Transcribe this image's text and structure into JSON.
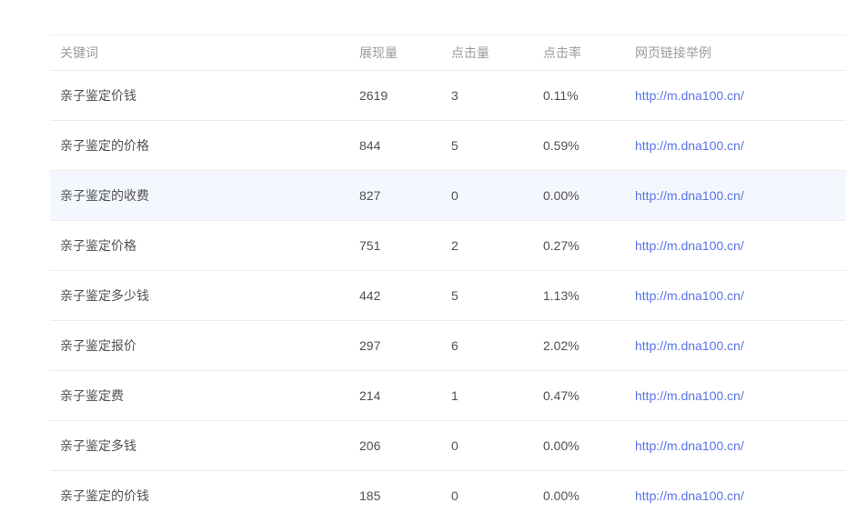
{
  "table": {
    "columns": [
      {
        "key": "keyword",
        "label": "关键词"
      },
      {
        "key": "impressions",
        "label": "展现量"
      },
      {
        "key": "clicks",
        "label": "点击量"
      },
      {
        "key": "ctr",
        "label": "点击率"
      },
      {
        "key": "link",
        "label": "网页链接举例"
      }
    ],
    "rows": [
      {
        "keyword": "亲子鉴定价钱",
        "impressions": "2619",
        "clicks": "3",
        "ctr": "0.11%",
        "link": "http://m.dna100.cn/",
        "highlighted": false
      },
      {
        "keyword": "亲子鉴定的价格",
        "impressions": "844",
        "clicks": "5",
        "ctr": "0.59%",
        "link": "http://m.dna100.cn/",
        "highlighted": false
      },
      {
        "keyword": "亲子鉴定的收费",
        "impressions": "827",
        "clicks": "0",
        "ctr": "0.00%",
        "link": "http://m.dna100.cn/",
        "highlighted": true
      },
      {
        "keyword": "亲子鉴定价格",
        "impressions": "751",
        "clicks": "2",
        "ctr": "0.27%",
        "link": "http://m.dna100.cn/",
        "highlighted": false
      },
      {
        "keyword": "亲子鉴定多少钱",
        "impressions": "442",
        "clicks": "5",
        "ctr": "1.13%",
        "link": "http://m.dna100.cn/",
        "highlighted": false
      },
      {
        "keyword": "亲子鉴定报价",
        "impressions": "297",
        "clicks": "6",
        "ctr": "2.02%",
        "link": "http://m.dna100.cn/",
        "highlighted": false
      },
      {
        "keyword": "亲子鉴定费",
        "impressions": "214",
        "clicks": "1",
        "ctr": "0.47%",
        "link": "http://m.dna100.cn/",
        "highlighted": false
      },
      {
        "keyword": "亲子鉴定多钱",
        "impressions": "206",
        "clicks": "0",
        "ctr": "0.00%",
        "link": "http://m.dna100.cn/",
        "highlighted": false
      },
      {
        "keyword": "亲子鉴定的价钱",
        "impressions": "185",
        "clicks": "0",
        "ctr": "0.00%",
        "link": "http://m.dna100.cn/",
        "highlighted": false
      }
    ],
    "colors": {
      "header_text": "#9b9b9b",
      "body_text": "#515151",
      "link": "#5a75e6",
      "row_border": "#ebebeb",
      "highlight_bg": "#f4f7fd",
      "page_bg": "#ffffff"
    }
  }
}
